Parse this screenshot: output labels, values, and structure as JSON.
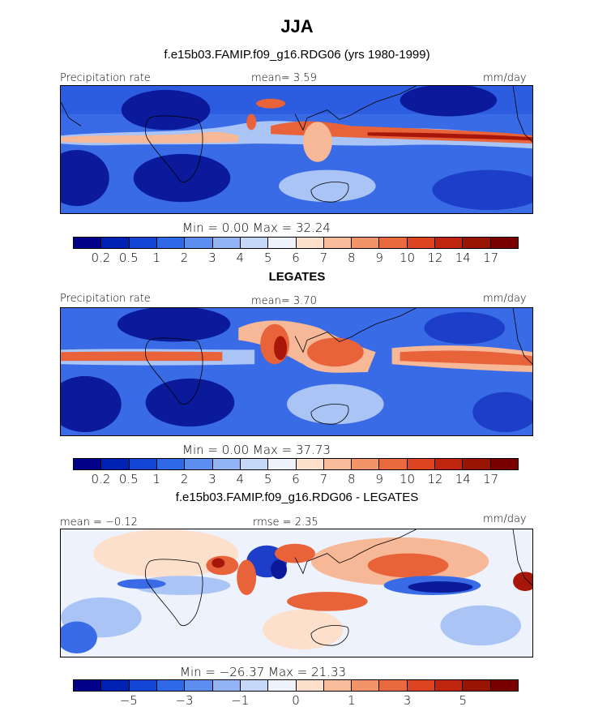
{
  "title": "JJA",
  "panels": [
    {
      "subtitle": "f.e15b03.FAMIP.f09_g16.RDG06 (yrs 1980-1999)",
      "left_label": "Precipitation rate",
      "center_label": "mean=    3.59",
      "right_label": "mm/day",
      "minmax": "Min =    0.00  Max =   32.24",
      "colorbar": {
        "colors": [
          "#00008b",
          "#0022b4",
          "#1446d6",
          "#2e6ae8",
          "#5c8ef0",
          "#92b4f5",
          "#c6d8fa",
          "#eef2fc",
          "#fde0cc",
          "#f8bc9a",
          "#f29468",
          "#ea6a40",
          "#dc4422",
          "#c0260e",
          "#9a1404",
          "#7a0000"
        ],
        "tick_labels": [
          "0.2",
          "0.5",
          "1",
          "2",
          "3",
          "4",
          "5",
          "6",
          "7",
          "8",
          "9",
          "10",
          "12",
          "14",
          "17"
        ]
      }
    },
    {
      "subtitle": "LEGATES",
      "left_label": "Precipitation rate",
      "center_label": "mean=    3.70",
      "right_label": "mm/day",
      "minmax": "Min =    0.00  Max =   37.73",
      "colorbar": {
        "colors": [
          "#00008b",
          "#0022b4",
          "#1446d6",
          "#2e6ae8",
          "#5c8ef0",
          "#92b4f5",
          "#c6d8fa",
          "#eef2fc",
          "#fde0cc",
          "#f8bc9a",
          "#f29468",
          "#ea6a40",
          "#dc4422",
          "#c0260e",
          "#9a1404",
          "#7a0000"
        ],
        "tick_labels": [
          "0.2",
          "0.5",
          "1",
          "2",
          "3",
          "4",
          "5",
          "6",
          "7",
          "8",
          "9",
          "10",
          "12",
          "14",
          "17"
        ]
      }
    },
    {
      "subtitle": "f.e15b03.FAMIP.f09_g16.RDG06 - LEGATES",
      "left_label": "mean =   −0.12",
      "center_label": "rmse =     2.35",
      "right_label": "mm/day",
      "minmax": "Min = −26.37  Max =   21.33",
      "colorbar": {
        "colors": [
          "#00008b",
          "#0022b4",
          "#1446d6",
          "#2e6ae8",
          "#5c8ef0",
          "#92b4f5",
          "#c6d8fa",
          "#eef2fc",
          "#fde0cc",
          "#f8bc9a",
          "#f29468",
          "#ea6a40",
          "#dc4422",
          "#c0260e",
          "#9a1404",
          "#7a0000"
        ],
        "tick_labels": [
          "−5",
          "−3",
          "−1",
          "0",
          "1",
          "3",
          "5"
        ]
      }
    }
  ],
  "colors": {
    "deep_blue": "#0a1a9a",
    "mid_blue": "#3a6be6",
    "light_blue": "#a9c4f5",
    "pale": "#eef2fc",
    "light_red": "#f6b896",
    "mid_red": "#e8623a",
    "deep_red": "#a8160a",
    "coast": "#000000"
  }
}
